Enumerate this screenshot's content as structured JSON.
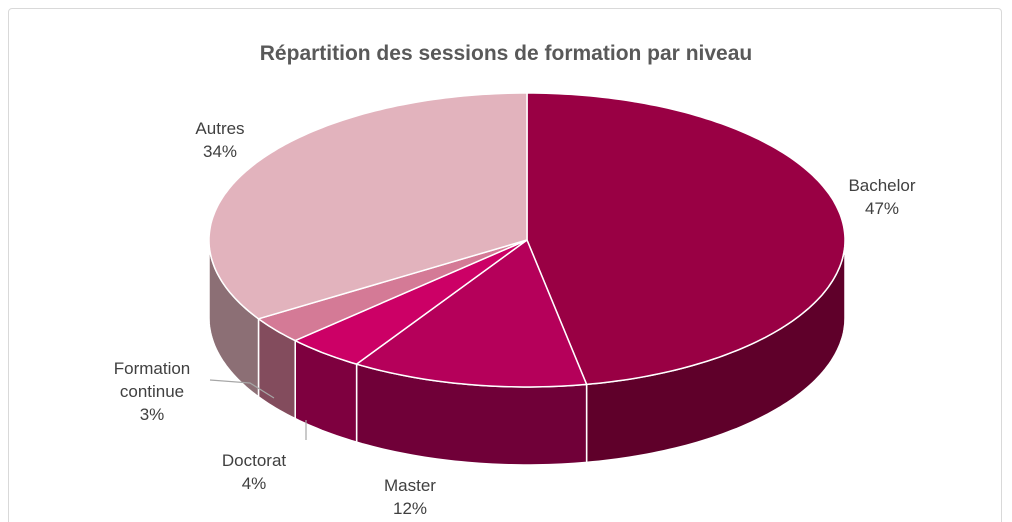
{
  "chart_data": {
    "type": "pie3d",
    "title": "Répartition des sessions de formation par niveau",
    "categories": [
      "Bachelor",
      "Master",
      "Doctorat",
      "Formation continue",
      "Autres"
    ],
    "values": [
      47,
      12,
      4,
      3,
      34
    ],
    "value_labels": [
      "47%",
      "12%",
      "4%",
      "3%",
      "34%"
    ],
    "colors": [
      "#990044",
      "#b5005a",
      "#cc0066",
      "#d47a96",
      "#e2b3bd"
    ]
  }
}
